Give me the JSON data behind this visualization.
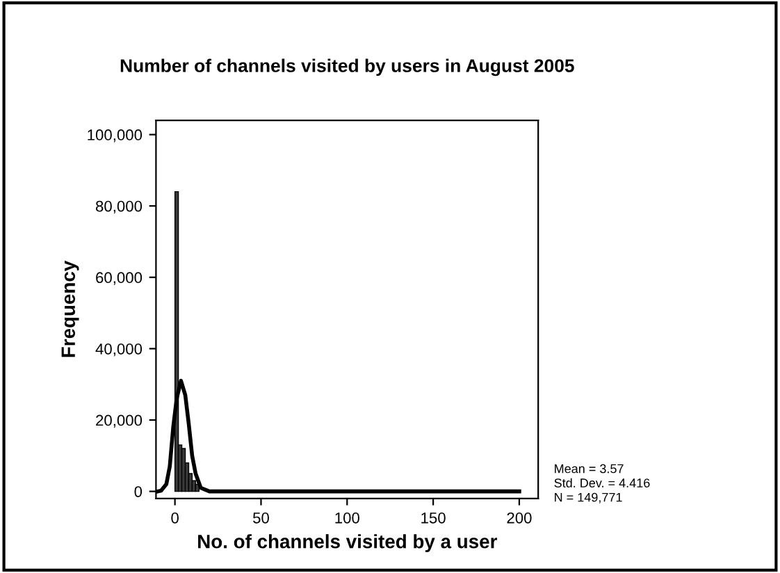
{
  "chart_data": {
    "type": "histogram",
    "title": "Number of channels visited by users in August 2005",
    "xlabel": "No. of channels visited by a user",
    "ylabel": "Frequency",
    "bins": [
      0,
      2,
      4,
      6,
      8,
      10,
      12,
      14,
      16,
      18,
      20
    ],
    "values": [
      84000,
      13000,
      12000,
      8000,
      5000,
      3000,
      2000,
      null,
      null,
      null
    ],
    "color": "#3a3a3a",
    "series": [
      {
        "type": "line",
        "color": "#000000",
        "x": [
          -10,
          -8,
          -5,
          -3,
          -1,
          1,
          3.5,
          6,
          8,
          10,
          12,
          15,
          20,
          50,
          100,
          150,
          200
        ],
        "values": [
          0,
          200,
          2000,
          7000,
          18000,
          26000,
          31000,
          27000,
          19000,
          10000,
          5000,
          1000,
          0,
          0,
          0,
          0,
          0
        ]
      }
    ],
    "xlim": [
      -11,
      211
    ],
    "ylim": [
      -2000,
      104000
    ],
    "xticks": [
      0,
      50,
      100,
      150,
      200
    ],
    "yticks": [
      {
        "value": 0,
        "label": "0"
      },
      {
        "value": 20000,
        "label": "20,000"
      },
      {
        "value": 40000,
        "label": "40,000"
      },
      {
        "value": 60000,
        "label": "60,000"
      },
      {
        "value": 80000,
        "label": "80,000"
      },
      {
        "value": 100000,
        "label": "100,000"
      }
    ],
    "grid": false,
    "annotations": [
      "Mean = 3.57",
      "Std. Dev. = 4.416",
      "N = 149,771"
    ]
  }
}
